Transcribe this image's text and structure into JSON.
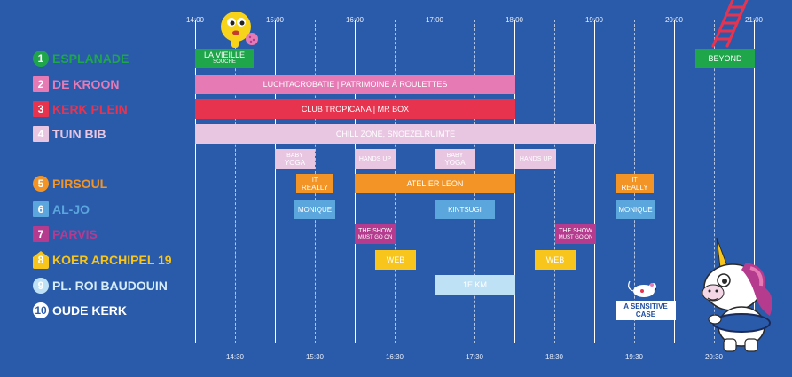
{
  "timeline": {
    "top_ticks": [
      "14:00",
      "15:00",
      "16:00",
      "17:00",
      "18:00",
      "19:00",
      "20:00",
      "21:00"
    ],
    "bottom_ticks": [
      "14:30",
      "15:30",
      "16:30",
      "17:30",
      "18:30",
      "19:30",
      "20:30"
    ]
  },
  "venues": [
    {
      "num": "1",
      "name": "ESPLANADE",
      "color": "#1fa64a",
      "text_color": "#1fa64a"
    },
    {
      "num": "2",
      "name": "DE KROON",
      "color": "#e57ab4",
      "text_color": "#e57ab4"
    },
    {
      "num": "3",
      "name": "KERK PLEIN",
      "color": "#e8334f",
      "text_color": "#e8334f"
    },
    {
      "num": "4",
      "name": "TUIN BIB",
      "color": "#e8c6e2",
      "text_color": "#e8c6e2"
    },
    {
      "num": "5",
      "name": "PIRSOUL",
      "color": "#f29426",
      "text_color": "#f29426"
    },
    {
      "num": "6",
      "name": "AL-JO",
      "color": "#5aa6dd",
      "text_color": "#5aa6dd"
    },
    {
      "num": "7",
      "name": "PARVIS",
      "color": "#b53b8f",
      "text_color": "#b53b8f"
    },
    {
      "num": "8",
      "name": "KOER ARCHIPEL 19",
      "color": "#f7c51b",
      "text_color": "#f7c51b"
    },
    {
      "num": "9",
      "name": "PL. ROI BAUDOUIN",
      "color": "#bfe1f5",
      "text_color": "#d6ecf8"
    },
    {
      "num": "10",
      "name": "OUDE KERK",
      "color": "#ffffff",
      "text_color": "#ffffff"
    }
  ],
  "events": {
    "la_vieille": {
      "label": "LA VIEILLE",
      "sub": "SOUCHE"
    },
    "beyond": {
      "label": "BEYOND"
    },
    "luchtacrobatie": {
      "label": "LUCHTACROBATIE | PATRIMOINE À ROULETTES"
    },
    "club_tropicana": {
      "label": "CLUB TROPICANA | MR BOX"
    },
    "chill_zone": {
      "label": "CHILL ZONE, SNOEZELRUIMTE"
    },
    "baby_yoga_1": {
      "label": "BABY",
      "sub": "YOGA"
    },
    "hands_up_1": {
      "label": "HANDS UP"
    },
    "baby_yoga_2": {
      "label": "BABY",
      "sub": "YOGA"
    },
    "hands_up_2": {
      "label": "HANDS UP"
    },
    "it_really_1": {
      "label": "IT",
      "sub": "REALLY"
    },
    "atelier_leon": {
      "label": "ATELIER LEON"
    },
    "it_really_2": {
      "label": "IT",
      "sub": "REALLY"
    },
    "monique_1": {
      "label": "MONIQUE"
    },
    "kintsugi": {
      "label": "KINTSUGI"
    },
    "monique_2": {
      "label": "MONIQUE"
    },
    "the_show_1": {
      "label": "THE SHOW",
      "sub": "MUST GO ON"
    },
    "the_show_2": {
      "label": "THE SHOW",
      "sub": "MUST GO ON"
    },
    "web_1": {
      "label": "WEB"
    },
    "web_2": {
      "label": "WEB"
    },
    "1e_km": {
      "label": "1E KM"
    },
    "sensitive_case": {
      "label": "A SENSITIVE",
      "sub": "CASE"
    }
  },
  "colors": {
    "background": "#2a5bab",
    "green": "#1fa64a",
    "pink": "#e57ab4",
    "red": "#e8334f",
    "lilac": "#e8c6e2",
    "orange": "#f29426",
    "blue": "#5aa6dd",
    "purple": "#b53b8f",
    "yellow": "#f7c51b",
    "lightblue": "#bfe1f5"
  },
  "icons": [
    "yellow-blob-mascot-icon",
    "ladder-icon",
    "mouse-icon",
    "unicorn-mascot-icon"
  ]
}
